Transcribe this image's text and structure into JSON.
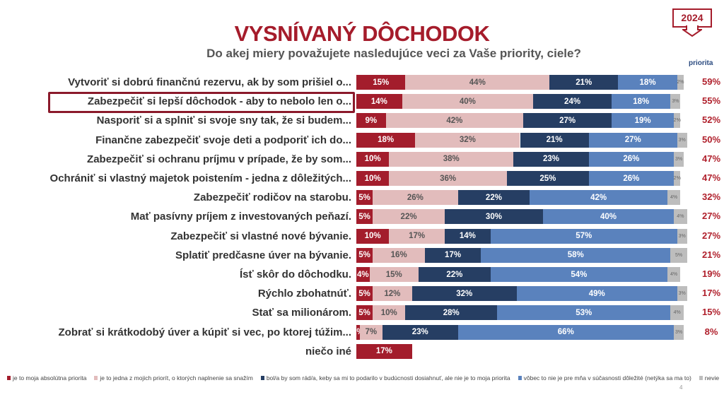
{
  "header": {
    "title": "VYSNÍVANÝ DÔCHODOK",
    "subtitle": "Do akej miery považujete nasledujúce veci za Vaše priority, ciele?",
    "year_badge": "2024",
    "priority_column_label": "priorita"
  },
  "page_number": "4",
  "chart_data": {
    "type": "bar",
    "orientation": "horizontal",
    "stacked": true,
    "title": "VYSNÍVANÝ DÔCHODOK",
    "subtitle": "Do akej miery považujete nasledujúce veci za Vaše priority, ciele?",
    "xlim": [
      0,
      100
    ],
    "legend_position": "bottom",
    "colors": [
      "#a31d2c",
      "#e2bcbc",
      "#263e63",
      "#5a82bd",
      "#bdbdbd"
    ],
    "series_names": [
      "je to moja absolútna priorita",
      "je to jedna z mojich priorít, o ktorých naplnenie sa snažím",
      "bol/a by som rád/a, keby sa mi to podarilo v budúcnosti dosiahnuť, ale nie je to moja priorita",
      "vôbec to nie je pre mňa v súčasnosti dôležité (netýka sa ma to)",
      "nevie"
    ],
    "categories": [
      "Vytvoriť si dobrú finančnú rezervu, ak by som prišiel o...",
      "Zabezpečiť si lepší dôchodok -  aby to nebolo len o...",
      "Nasporiť si a splniť si svoje sny tak, že si budem...",
      "Finančne zabezpečiť svoje deti a podporiť ich do...",
      "Zabezpečiť si ochranu príjmu v prípade, že by som...",
      "Ochrániť si vlastný majetok poistením - jedna z dôležitých...",
      "Zabezpečiť rodičov na starobu.",
      "Mať pasívny príjem z investovaných peňazí.",
      "Zabezpečiť si vlastné nové bývanie.",
      "Splatiť predčasne úver na bývanie.",
      "Ísť skôr do dôchodku.",
      "Rýchlo zbohatnúť.",
      "Stať sa milionárom.",
      "Zobrať si  krátkodobý úver a kúpiť si vec, po ktorej túžim...",
      "niečo iné"
    ],
    "values": [
      [
        15,
        44,
        21,
        18,
        2
      ],
      [
        14,
        40,
        24,
        18,
        3
      ],
      [
        9,
        42,
        27,
        19,
        2
      ],
      [
        18,
        32,
        21,
        27,
        3
      ],
      [
        10,
        38,
        23,
        26,
        3
      ],
      [
        10,
        36,
        25,
        26,
        2
      ],
      [
        5,
        26,
        22,
        42,
        4
      ],
      [
        5,
        22,
        30,
        40,
        4
      ],
      [
        10,
        17,
        14,
        57,
        3
      ],
      [
        5,
        16,
        17,
        58,
        5
      ],
      [
        4,
        15,
        22,
        54,
        4
      ],
      [
        5,
        12,
        32,
        49,
        3
      ],
      [
        5,
        10,
        28,
        53,
        4
      ],
      [
        1,
        7,
        23,
        66,
        3
      ],
      [
        17
      ]
    ],
    "labels": [
      [
        "15%",
        "44%",
        "21%",
        "18%",
        "2%"
      ],
      [
        "14%",
        "40%",
        "24%",
        "18%",
        "3%"
      ],
      [
        "9%",
        "42%",
        "27%",
        "19%",
        "2%"
      ],
      [
        "18%",
        "32%",
        "21%",
        "27%",
        "3%"
      ],
      [
        "10%",
        "38%",
        "23%",
        "26%",
        "3%"
      ],
      [
        "10%",
        "36%",
        "25%",
        "26%",
        "2%"
      ],
      [
        "5%",
        "26%",
        "22%",
        "42%",
        "4%"
      ],
      [
        "5%",
        "22%",
        "30%",
        "40%",
        "4%"
      ],
      [
        "10%",
        "17%",
        "14%",
        "57%",
        "3%"
      ],
      [
        "5%",
        "16%",
        "17%",
        "58%",
        "5%"
      ],
      [
        "4%",
        "15%",
        "22%",
        "54%",
        "4%"
      ],
      [
        "5%",
        "12%",
        "32%",
        "49%",
        "3%"
      ],
      [
        "5%",
        "10%",
        "28%",
        "53%",
        "4%"
      ],
      [
        "1%",
        "7%",
        "23%",
        "66%",
        "3%"
      ],
      [
        "17%"
      ]
    ],
    "priority_totals": [
      "59%",
      "55%",
      "52%",
      "50%",
      "47%",
      "47%",
      "32%",
      "27%",
      "27%",
      "21%",
      "19%",
      "17%",
      "15%",
      "8%",
      ""
    ],
    "highlighted_category": "Zabezpečiť si lepší dôchodok -  aby to nebolo len o..."
  }
}
